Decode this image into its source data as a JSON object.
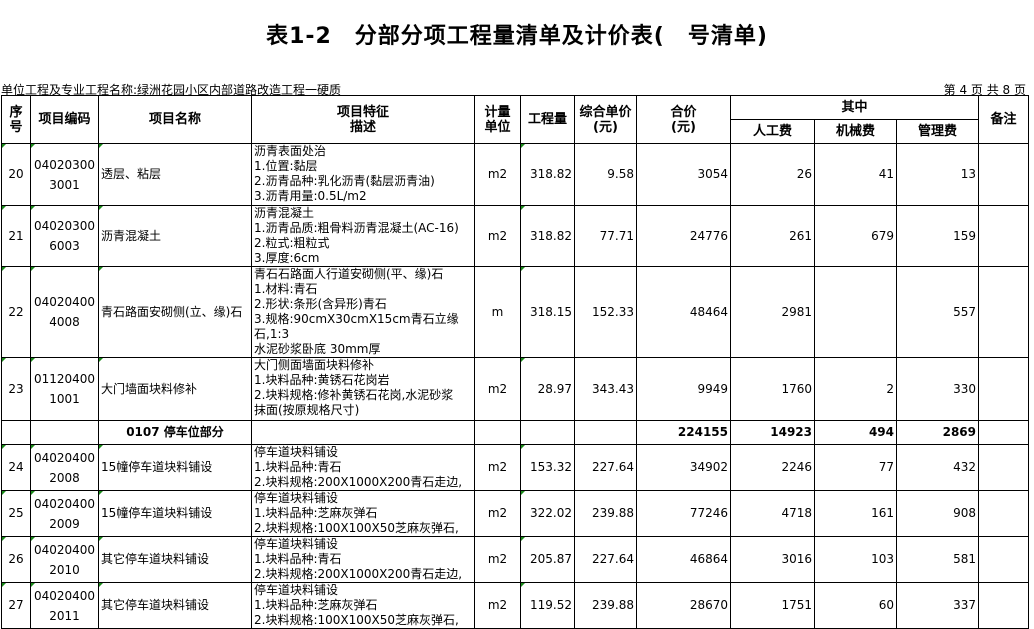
{
  "title": "表1-2　分部分项工程量清单及计价表(　号清单)",
  "project_line": "单位工程及专业工程名称:绿洲花园小区内部道路改造工程一硬质",
  "page_info": "第 4 页 共 8 页",
  "headers": {
    "seq": "序\n号",
    "code": "项目编码",
    "name": "项目名称",
    "desc": "项目特征\n描述",
    "unit": "计量\n单位",
    "qty": "工程量",
    "unit_price": "综合单价\n(元)",
    "total": "合价\n(元)",
    "of_which": "其中",
    "labor": "人工费",
    "machine": "机械费",
    "mgmt": "管理费",
    "remark": "备注"
  },
  "colors": {
    "cell_marker": "#1a8a1a",
    "border": "#000000"
  },
  "rows": [
    {
      "type": "item",
      "seq": "20",
      "code": "040203003001",
      "name": "透层、粘层",
      "desc": "沥青表面处治\n1.位置:黏层\n2.沥青品种:乳化沥青(黏层沥青油)\n3.沥青用量:0.5L/m2",
      "unit": "m2",
      "qty": "318.82",
      "unit_price": "9.58",
      "total": "3054",
      "labor": "26",
      "machine": "41",
      "mgmt": "13",
      "remark": ""
    },
    {
      "type": "item",
      "seq": "21",
      "code": "040203006003",
      "name": "沥青混凝土",
      "desc": "沥青混凝土\n1.沥青品质:粗骨料沥青混凝土(AC-16)\n2.粒式:粗粒式\n3.厚度:6cm",
      "unit": "m2",
      "qty": "318.82",
      "unit_price": "77.71",
      "total": "24776",
      "labor": "261",
      "machine": "679",
      "mgmt": "159",
      "remark": ""
    },
    {
      "type": "item",
      "seq": "22",
      "code": "040204004008",
      "name": "青石路面安砌侧(立、缘)石",
      "desc": "青石石路面人行道安砌侧(平、缘)石\n1.材料:青石\n2.形状:条形(含异形)青石\n3.规格:90cmX30cmX15cm青石立缘石,1:3\n水泥砂浆卧底 30mm厚",
      "unit": "m",
      "qty": "318.15",
      "unit_price": "152.33",
      "total": "48464",
      "labor": "2981",
      "machine": "",
      "mgmt": "557",
      "remark": ""
    },
    {
      "type": "item",
      "seq": "23",
      "code": "011204001001",
      "name": "大门墙面块料修补",
      "desc": "大门侧面墙面块料修补\n1.块料品种:黄锈石花岗岩\n2.块料规格:修补黄锈石花岗,水泥砂浆\n抹面(按原规格尺寸)",
      "unit": "m2",
      "qty": "28.97",
      "unit_price": "343.43",
      "total": "9949",
      "labor": "1760",
      "machine": "2",
      "mgmt": "330",
      "remark": ""
    },
    {
      "type": "subtotal",
      "name": "0107 停车位部分",
      "total": "224155",
      "labor": "14923",
      "machine": "494",
      "mgmt": "2869"
    },
    {
      "type": "item",
      "seq": "24",
      "code": "040204002008",
      "name": "15幢停车道块料铺设",
      "desc": "停车道块料铺设\n1.块料品种:青石\n2.块料规格:200X1000X200青石走边,",
      "unit": "m2",
      "qty": "153.32",
      "unit_price": "227.64",
      "total": "34902",
      "labor": "2246",
      "machine": "77",
      "mgmt": "432",
      "remark": ""
    },
    {
      "type": "item",
      "seq": "25",
      "code": "040204002009",
      "name": "15幢停车道块料铺设",
      "desc": "停车道块料铺设\n1.块料品种:芝麻灰弹石\n2.块料规格:100X100X50芝麻灰弹石,",
      "unit": "m2",
      "qty": "322.02",
      "unit_price": "239.88",
      "total": "77246",
      "labor": "4718",
      "machine": "161",
      "mgmt": "908",
      "remark": ""
    },
    {
      "type": "item",
      "seq": "26",
      "code": "040204002010",
      "name": "其它停车道块料铺设",
      "desc": "停车道块料铺设\n1.块料品种:青石\n2.块料规格:200X1000X200青石走边,",
      "unit": "m2",
      "qty": "205.87",
      "unit_price": "227.64",
      "total": "46864",
      "labor": "3016",
      "machine": "103",
      "mgmt": "581",
      "remark": ""
    },
    {
      "type": "item",
      "seq": "27",
      "code": "040204002011",
      "name": "其它停车道块料铺设",
      "desc": "停车道块料铺设\n1.块料品种:芝麻灰弹石\n2.块料规格:100X100X50芝麻灰弹石,",
      "unit": "m2",
      "qty": "119.52",
      "unit_price": "239.88",
      "total": "28670",
      "labor": "1751",
      "machine": "60",
      "mgmt": "337",
      "remark": ""
    }
  ]
}
